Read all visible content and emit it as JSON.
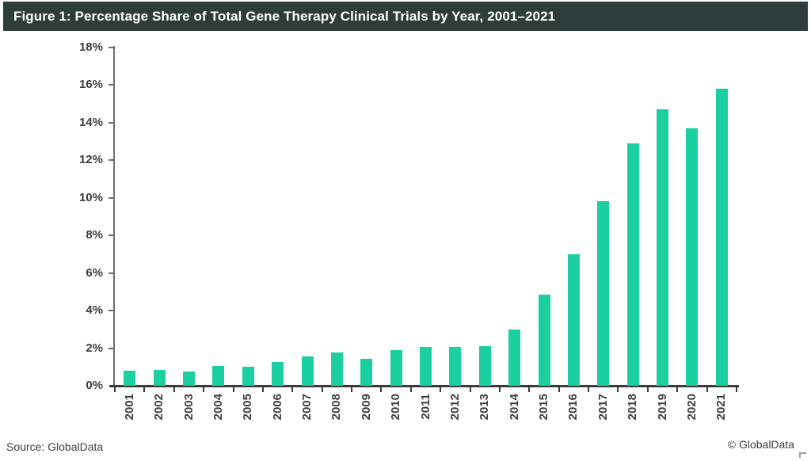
{
  "header": {
    "title": "Figure 1: Percentage Share of Total Gene Therapy Clinical Trials by Year, 2001–2021"
  },
  "chart_data": {
    "type": "bar",
    "title": "Percentage Share of Total Gene Therapy Clinical Trials by Year, 2001–2021",
    "categories": [
      "2001",
      "2002",
      "2003",
      "2004",
      "2005",
      "2006",
      "2007",
      "2008",
      "2009",
      "2010",
      "2011",
      "2012",
      "2013",
      "2014",
      "2015",
      "2016",
      "2017",
      "2018",
      "2019",
      "2020",
      "2021"
    ],
    "values": [
      0.8,
      0.85,
      0.75,
      1.05,
      1.0,
      1.25,
      1.55,
      1.75,
      1.45,
      1.9,
      2.05,
      2.05,
      2.1,
      3.0,
      4.85,
      7.0,
      9.8,
      12.9,
      14.7,
      13.7,
      15.8
    ],
    "xlabel": "",
    "ylabel": "",
    "ylim": [
      0,
      18
    ],
    "ytick_step": 2,
    "ytick_suffix": "%",
    "grid": false,
    "legend_position": "none",
    "bar_color": "#1ccfa0"
  },
  "footer": {
    "source": "Source: GlobalData",
    "copyright": "© GlobalData"
  },
  "colors": {
    "title_bar_bg": "#2e3c3b",
    "title_text": "#ffffff",
    "bar": "#1ccfa0",
    "y_axis": "#6e6e6e",
    "x_axis": "#3b3b3b",
    "label_text": "#3d3d3d"
  }
}
